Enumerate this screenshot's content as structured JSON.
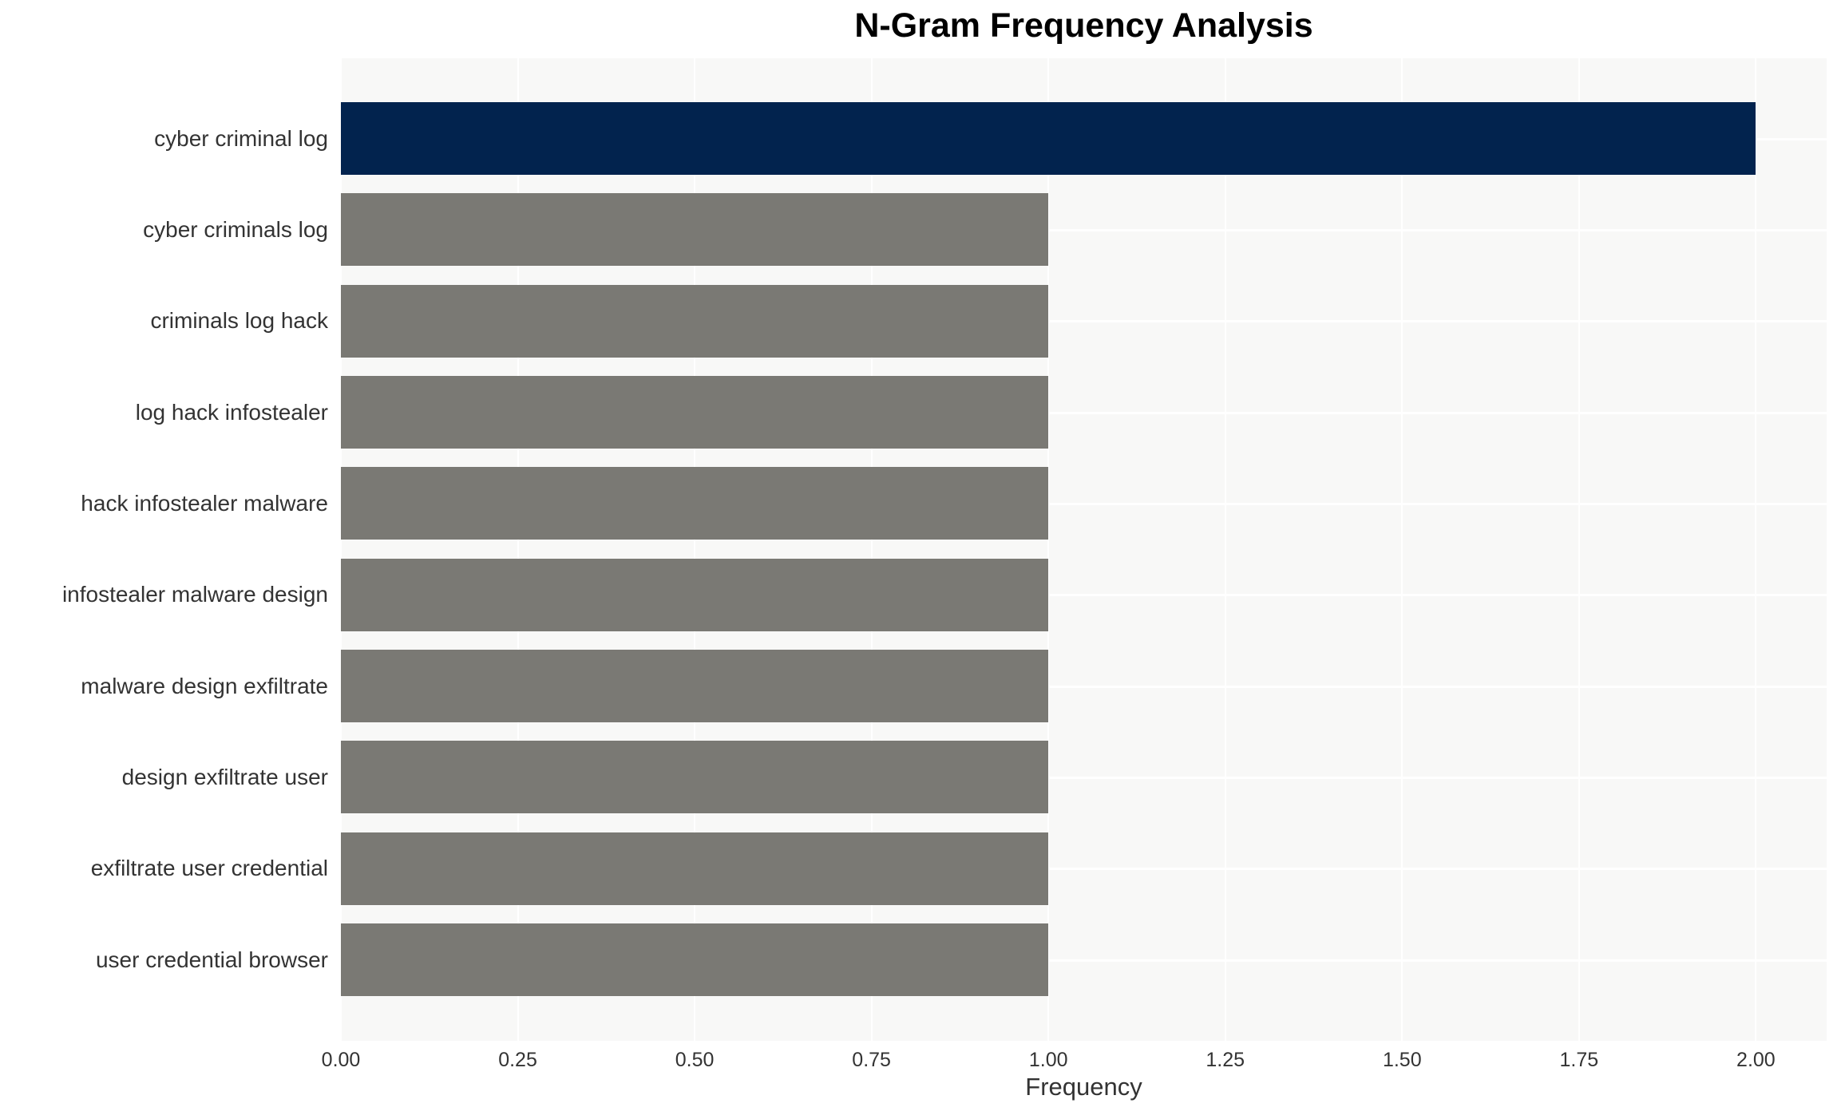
{
  "chart_data": {
    "type": "bar",
    "orientation": "horizontal",
    "title": "N-Gram Frequency Analysis",
    "xlabel": "Frequency",
    "ylabel": "",
    "categories": [
      "cyber criminal log",
      "cyber criminals log",
      "criminals log hack",
      "log hack infostealer",
      "hack infostealer malware",
      "infostealer malware design",
      "malware design exfiltrate",
      "design exfiltrate user",
      "exfiltrate user credential",
      "user credential browser"
    ],
    "values": [
      2.0,
      1.0,
      1.0,
      1.0,
      1.0,
      1.0,
      1.0,
      1.0,
      1.0,
      1.0
    ],
    "xticks": [
      "0.00",
      "0.25",
      "0.50",
      "0.75",
      "1.00",
      "1.25",
      "1.50",
      "1.75",
      "2.00"
    ],
    "xtick_values": [
      0,
      0.25,
      0.5,
      0.75,
      1.0,
      1.25,
      1.5,
      1.75,
      2.0
    ],
    "xlim": [
      0,
      2.1
    ],
    "grid": true,
    "legend": false,
    "colors": {
      "bar_highlight": "#02234E",
      "bar_default": "#7A7974",
      "plot_background": "#F8F8F7",
      "gridline": "#FFFFFF",
      "title_text": "#000000",
      "axis_text": "#333333"
    }
  }
}
